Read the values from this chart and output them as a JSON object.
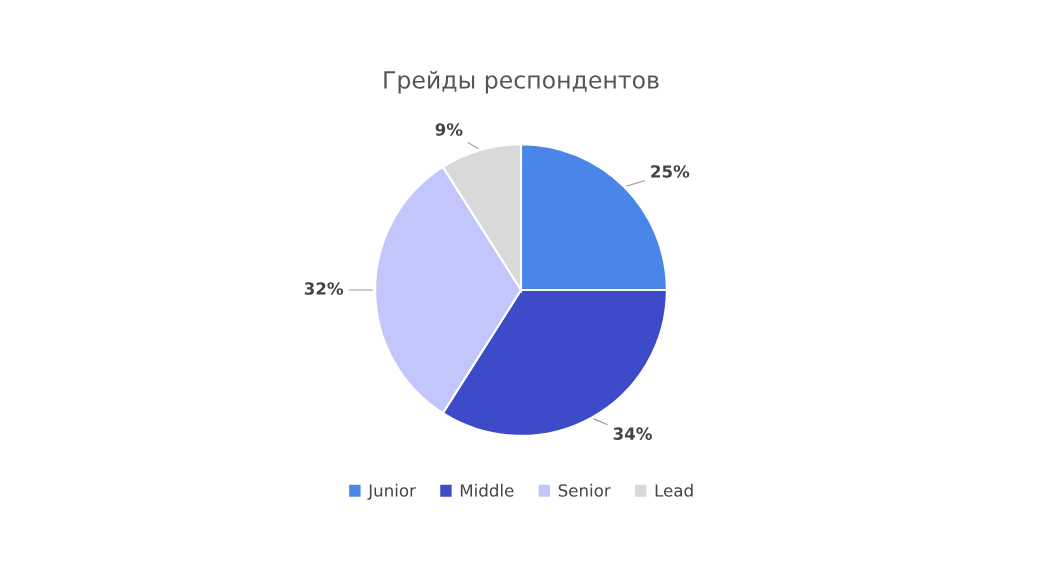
{
  "chart_data": {
    "type": "pie",
    "title": "Грейды респондентов",
    "categories": [
      "Junior",
      "Middle",
      "Senior",
      "Lead"
    ],
    "values": [
      25,
      34,
      32,
      9
    ],
    "colors": [
      "#4a86e8",
      "#3d4bc8",
      "#c3c6fb",
      "#d9d9d9"
    ],
    "value_labels": [
      "25%",
      "34%",
      "32%",
      "9%"
    ],
    "legend": "bottom"
  }
}
